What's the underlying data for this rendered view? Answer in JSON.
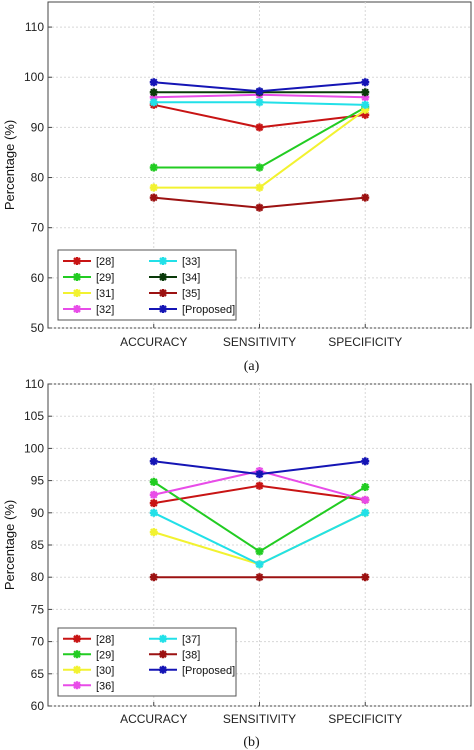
{
  "chart_data": [
    {
      "type": "line",
      "caption": "(a)",
      "categories": [
        "ACCURACY",
        "SENSITIVITY",
        "SPECIFICITY"
      ],
      "ylabel": "Percentage (%)",
      "ylim": [
        50,
        115
      ],
      "yticks": [
        50,
        60,
        70,
        80,
        90,
        100,
        110
      ],
      "grid": true,
      "legend_position": "bottom-left",
      "legend_columns": 2,
      "series": [
        {
          "name": "[28]",
          "color": "#c81414",
          "values": [
            94.5,
            90,
            92.5
          ]
        },
        {
          "name": "[29]",
          "color": "#22cc22",
          "values": [
            82,
            82,
            94
          ]
        },
        {
          "name": "[31]",
          "color": "#f2f230",
          "values": [
            78,
            78,
            93.5
          ]
        },
        {
          "name": "[32]",
          "color": "#e84ce8",
          "values": [
            96,
            96.5,
            96
          ]
        },
        {
          "name": "[33]",
          "color": "#22e0e8",
          "values": [
            95,
            95,
            94.5
          ]
        },
        {
          "name": "[34]",
          "color": "#0a3a0a",
          "values": [
            97,
            97,
            97
          ]
        },
        {
          "name": "[35]",
          "color": "#9c1212",
          "values": [
            76,
            74,
            76
          ]
        },
        {
          "name": "[Proposed]",
          "color": "#1515b5",
          "values": [
            99,
            97.2,
            99
          ]
        }
      ]
    },
    {
      "type": "line",
      "caption": "(b)",
      "categories": [
        "ACCURACY",
        "SENSITIVITY",
        "SPECIFICITY"
      ],
      "ylabel": "Percentage (%)",
      "ylim": [
        60,
        110
      ],
      "yticks": [
        60,
        65,
        70,
        75,
        80,
        85,
        90,
        95,
        100,
        105,
        110
      ],
      "grid": true,
      "legend_position": "bottom-left",
      "legend_columns": 2,
      "series": [
        {
          "name": "[28]",
          "color": "#c81414",
          "values": [
            91.5,
            94.2,
            92
          ]
        },
        {
          "name": "[29]",
          "color": "#22cc22",
          "values": [
            94.8,
            84,
            94
          ]
        },
        {
          "name": "[30]",
          "color": "#f2f230",
          "values": [
            87,
            82,
            90
          ]
        },
        {
          "name": "[36]",
          "color": "#e84ce8",
          "values": [
            92.8,
            96.5,
            92
          ]
        },
        {
          "name": "[37]",
          "color": "#22e0e8",
          "values": [
            90,
            82,
            90
          ]
        },
        {
          "name": "[38]",
          "color": "#9c1212",
          "values": [
            80,
            80,
            80
          ]
        },
        {
          "name": "[Proposed]",
          "color": "#1515b5",
          "values": [
            98,
            96,
            98
          ]
        }
      ]
    }
  ]
}
